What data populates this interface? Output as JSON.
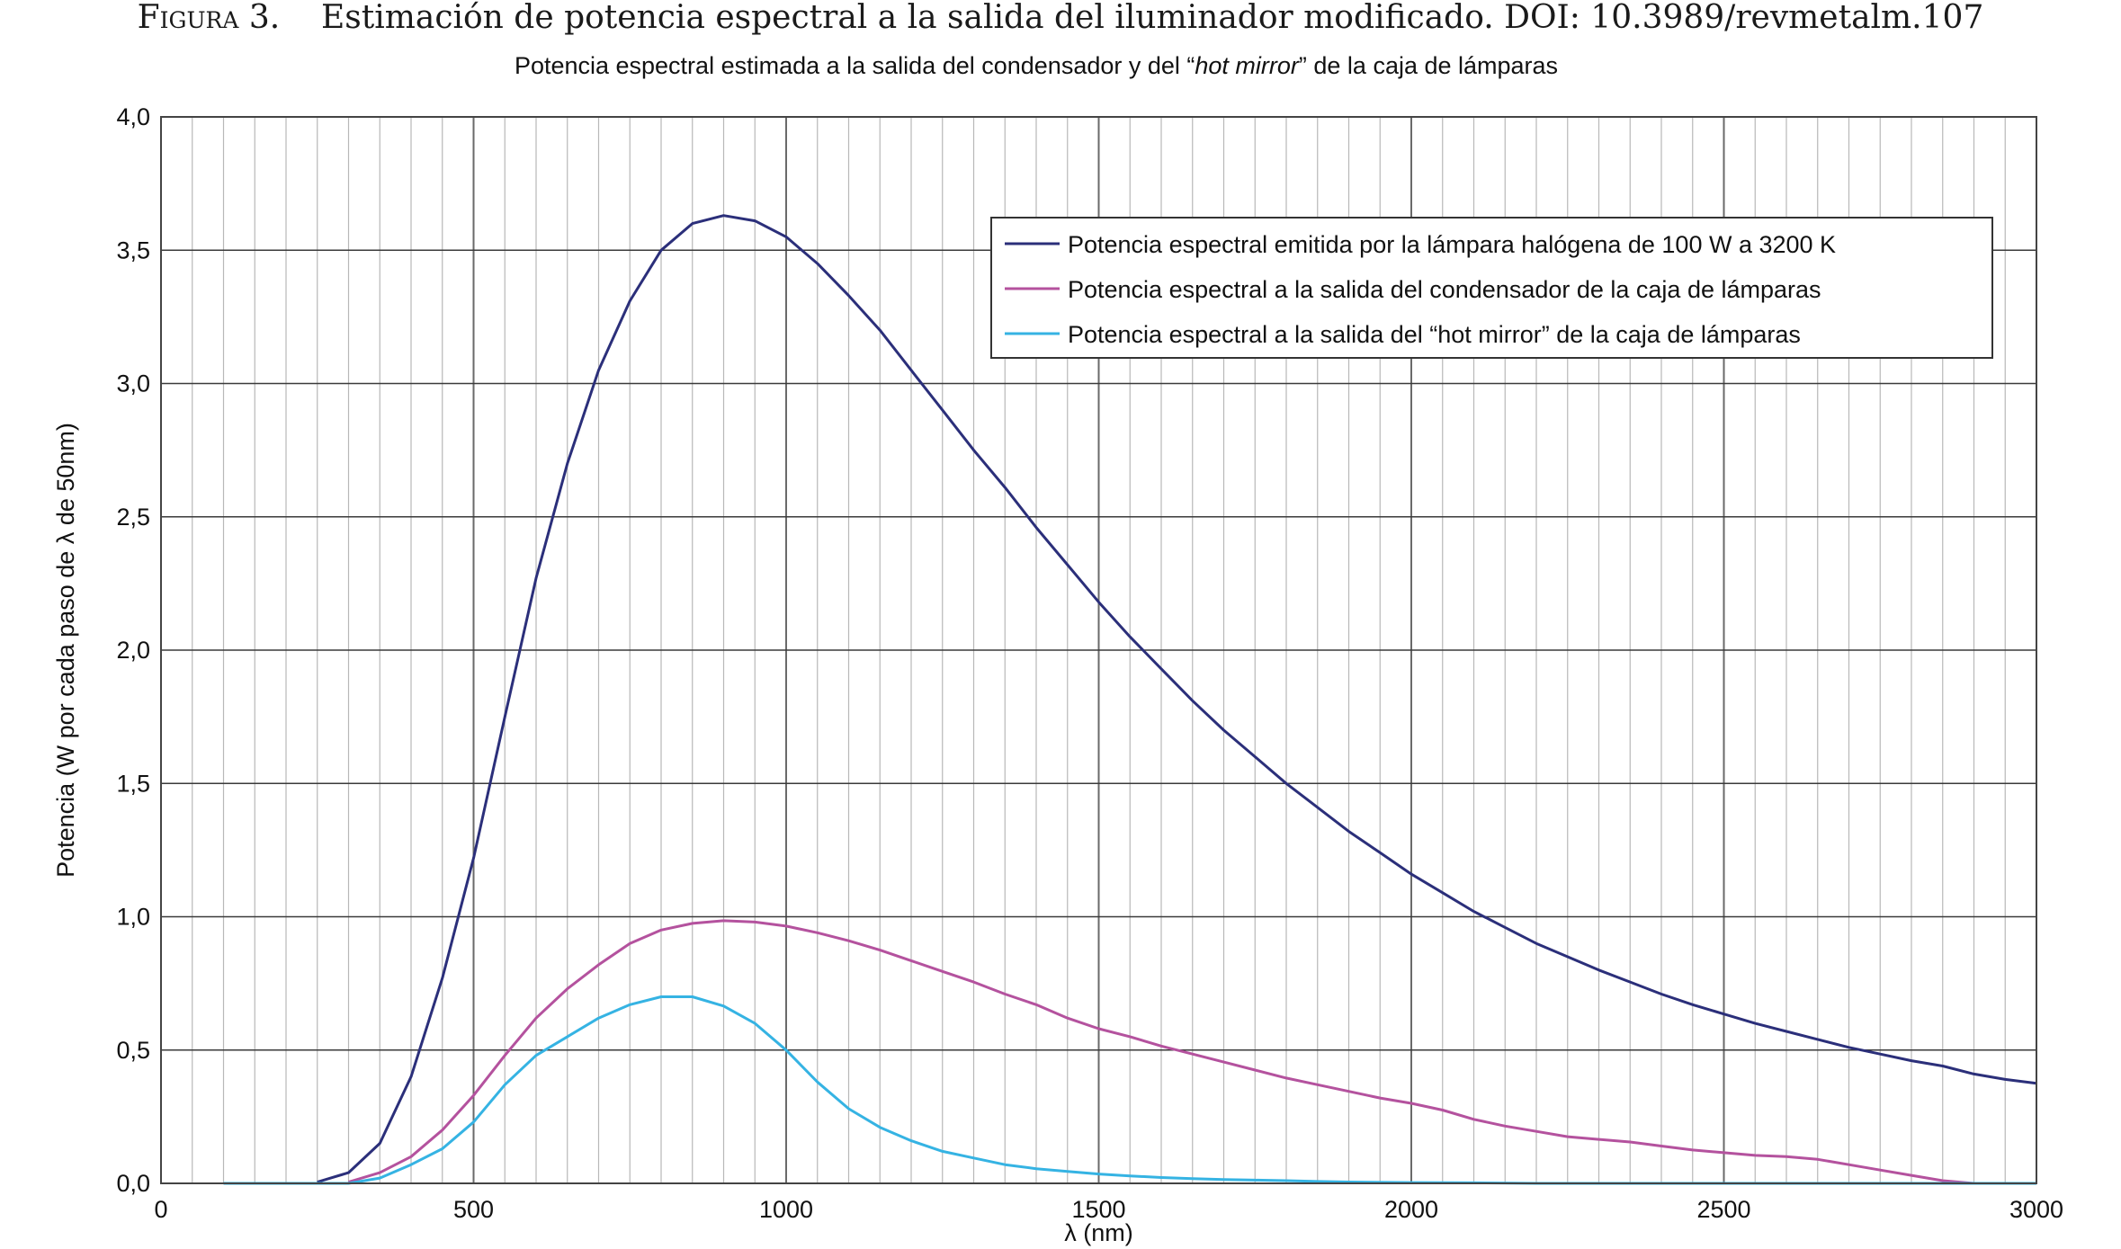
{
  "figure": {
    "label": "Figura 3.",
    "caption": "Estimación de potencia espectral a la salida del iluminador modificado. DOI: 10.3989/revmetalm.107"
  },
  "chart_data": {
    "type": "line",
    "title_parts": [
      "Potencia espectral estimada a la salida del condensador y del “",
      "hot mirror",
      "” de la caja de lámparas"
    ],
    "xlabel": "λ (nm)",
    "ylabel": "Potencia (W por cada paso de λ de 50nm)",
    "xlim": [
      0,
      3000
    ],
    "ylim": [
      0,
      4
    ],
    "x_ticks": [
      0,
      500,
      1000,
      1500,
      2000,
      2500,
      3000
    ],
    "x_tick_labels": [
      "0",
      "500",
      "1000",
      "1500",
      "2000",
      "2500",
      "3000"
    ],
    "y_ticks": [
      0,
      0.5,
      1,
      1.5,
      2,
      2.5,
      3,
      3.5,
      4
    ],
    "y_tick_labels": [
      "0,0",
      "0,5",
      "1,0",
      "1,5",
      "2,0",
      "2,5",
      "3,0",
      "3,5",
      "4,0"
    ],
    "grid": true,
    "legend_position": "top-right",
    "series": [
      {
        "name": "Potencia espectral emitida por la lámpara halógena de 100 W a 3200 K",
        "color": "#2b2f7a",
        "points": [
          [
            250,
            0.005
          ],
          [
            300,
            0.04
          ],
          [
            350,
            0.15
          ],
          [
            400,
            0.4
          ],
          [
            450,
            0.77
          ],
          [
            500,
            1.22
          ],
          [
            550,
            1.75
          ],
          [
            600,
            2.27
          ],
          [
            650,
            2.7
          ],
          [
            700,
            3.05
          ],
          [
            750,
            3.31
          ],
          [
            800,
            3.5
          ],
          [
            850,
            3.6
          ],
          [
            900,
            3.63
          ],
          [
            950,
            3.61
          ],
          [
            1000,
            3.55
          ],
          [
            1050,
            3.45
          ],
          [
            1100,
            3.33
          ],
          [
            1150,
            3.2
          ],
          [
            1200,
            3.05
          ],
          [
            1250,
            2.9
          ],
          [
            1300,
            2.75
          ],
          [
            1350,
            2.61
          ],
          [
            1400,
            2.46
          ],
          [
            1450,
            2.32
          ],
          [
            1500,
            2.18
          ],
          [
            1550,
            2.05
          ],
          [
            1600,
            1.93
          ],
          [
            1650,
            1.81
          ],
          [
            1700,
            1.7
          ],
          [
            1750,
            1.6
          ],
          [
            1800,
            1.5
          ],
          [
            1850,
            1.41
          ],
          [
            1900,
            1.32
          ],
          [
            1950,
            1.24
          ],
          [
            2000,
            1.16
          ],
          [
            2050,
            1.09
          ],
          [
            2100,
            1.02
          ],
          [
            2150,
            0.96
          ],
          [
            2200,
            0.9
          ],
          [
            2250,
            0.85
          ],
          [
            2300,
            0.8
          ],
          [
            2350,
            0.755
          ],
          [
            2400,
            0.71
          ],
          [
            2450,
            0.67
          ],
          [
            2500,
            0.635
          ],
          [
            2550,
            0.6
          ],
          [
            2600,
            0.57
          ],
          [
            2650,
            0.54
          ],
          [
            2700,
            0.51
          ],
          [
            2750,
            0.485
          ],
          [
            2800,
            0.46
          ],
          [
            2850,
            0.44
          ],
          [
            2900,
            0.41
          ],
          [
            2950,
            0.39
          ],
          [
            3000,
            0.375
          ]
        ]
      },
      {
        "name": "Potencia espectral a la salida del condensador de la caja de lámparas",
        "color": "#b4529e",
        "points": [
          [
            300,
            0.005
          ],
          [
            350,
            0.04
          ],
          [
            400,
            0.1
          ],
          [
            450,
            0.2
          ],
          [
            500,
            0.33
          ],
          [
            550,
            0.48
          ],
          [
            600,
            0.62
          ],
          [
            650,
            0.73
          ],
          [
            700,
            0.82
          ],
          [
            750,
            0.9
          ],
          [
            800,
            0.95
          ],
          [
            850,
            0.975
          ],
          [
            900,
            0.985
          ],
          [
            950,
            0.98
          ],
          [
            1000,
            0.965
          ],
          [
            1050,
            0.94
          ],
          [
            1100,
            0.91
          ],
          [
            1150,
            0.875
          ],
          [
            1200,
            0.835
          ],
          [
            1250,
            0.795
          ],
          [
            1300,
            0.755
          ],
          [
            1350,
            0.71
          ],
          [
            1400,
            0.67
          ],
          [
            1450,
            0.62
          ],
          [
            1500,
            0.58
          ],
          [
            1550,
            0.55
          ],
          [
            1600,
            0.515
          ],
          [
            1650,
            0.485
          ],
          [
            1700,
            0.455
          ],
          [
            1750,
            0.425
          ],
          [
            1800,
            0.395
          ],
          [
            1850,
            0.37
          ],
          [
            1900,
            0.345
          ],
          [
            1950,
            0.32
          ],
          [
            2000,
            0.3
          ],
          [
            2050,
            0.275
          ],
          [
            2100,
            0.24
          ],
          [
            2150,
            0.215
          ],
          [
            2200,
            0.195
          ],
          [
            2250,
            0.175
          ],
          [
            2300,
            0.165
          ],
          [
            2350,
            0.155
          ],
          [
            2400,
            0.14
          ],
          [
            2450,
            0.125
          ],
          [
            2500,
            0.115
          ],
          [
            2550,
            0.105
          ],
          [
            2600,
            0.1
          ],
          [
            2650,
            0.09
          ],
          [
            2700,
            0.07
          ],
          [
            2750,
            0.05
          ],
          [
            2800,
            0.03
          ],
          [
            2850,
            0.01
          ],
          [
            2900,
            0.0
          ],
          [
            3000,
            0.0
          ]
        ]
      },
      {
        "name": "Potencia espectral a la salida del “hot mirror” de la caja de lámparas",
        "color": "#35b3e3",
        "points": [
          [
            100,
            0.0
          ],
          [
            200,
            0.0
          ],
          [
            300,
            0.0
          ],
          [
            350,
            0.02
          ],
          [
            400,
            0.07
          ],
          [
            450,
            0.13
          ],
          [
            500,
            0.23
          ],
          [
            550,
            0.37
          ],
          [
            600,
            0.48
          ],
          [
            650,
            0.55
          ],
          [
            700,
            0.62
          ],
          [
            750,
            0.67
          ],
          [
            800,
            0.7
          ],
          [
            850,
            0.7
          ],
          [
            900,
            0.665
          ],
          [
            950,
            0.6
          ],
          [
            1000,
            0.5
          ],
          [
            1050,
            0.38
          ],
          [
            1100,
            0.28
          ],
          [
            1150,
            0.21
          ],
          [
            1200,
            0.16
          ],
          [
            1250,
            0.12
          ],
          [
            1300,
            0.095
          ],
          [
            1350,
            0.07
          ],
          [
            1400,
            0.055
          ],
          [
            1450,
            0.045
          ],
          [
            1500,
            0.035
          ],
          [
            1550,
            0.028
          ],
          [
            1600,
            0.022
          ],
          [
            1650,
            0.018
          ],
          [
            1700,
            0.014
          ],
          [
            1750,
            0.012
          ],
          [
            1800,
            0.01
          ],
          [
            1850,
            0.007
          ],
          [
            1900,
            0.005
          ],
          [
            2000,
            0.003
          ],
          [
            2100,
            0.002
          ],
          [
            2200,
            0.0
          ],
          [
            2400,
            0.0
          ],
          [
            3000,
            0.0
          ]
        ]
      }
    ]
  }
}
